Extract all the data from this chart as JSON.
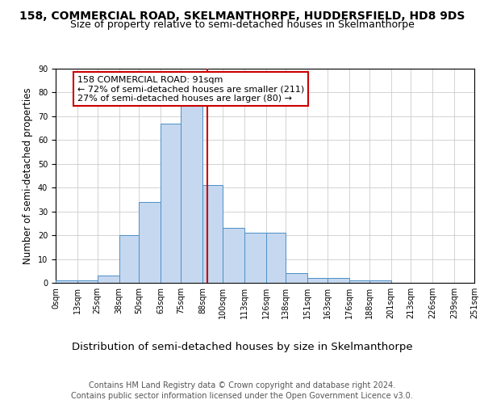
{
  "title": "158, COMMERCIAL ROAD, SKELMANTHORPE, HUDDERSFIELD, HD8 9DS",
  "subtitle": "Size of property relative to semi-detached houses in Skelmanthorpe",
  "xlabel": "Distribution of semi-detached houses by size in Skelmanthorpe",
  "ylabel": "Number of semi-detached properties",
  "bin_edges": [
    0,
    13,
    25,
    38,
    50,
    63,
    75,
    88,
    100,
    113,
    126,
    138,
    151,
    163,
    176,
    188,
    201,
    213,
    226,
    239,
    251
  ],
  "bar_heights": [
    1,
    1,
    3,
    20,
    34,
    67,
    75,
    41,
    23,
    21,
    21,
    4,
    2,
    2,
    1,
    1,
    0,
    0,
    0,
    0
  ],
  "bar_color": "#c5d8f0",
  "bar_edge_color": "#4d8fc5",
  "property_size": 91,
  "vline_color": "#cc0000",
  "annotation_text": "158 COMMERCIAL ROAD: 91sqm\n← 72% of semi-detached houses are smaller (211)\n27% of semi-detached houses are larger (80) →",
  "annotation_box_color": "#ffffff",
  "annotation_box_edge_color": "#cc0000",
  "ylim": [
    0,
    90
  ],
  "yticks": [
    0,
    10,
    20,
    30,
    40,
    50,
    60,
    70,
    80,
    90
  ],
  "background_color": "#ffffff",
  "grid_color": "#cccccc",
  "footer_line1": "Contains HM Land Registry data © Crown copyright and database right 2024.",
  "footer_line2": "Contains public sector information licensed under the Open Government Licence v3.0.",
  "title_fontsize": 10,
  "subtitle_fontsize": 9,
  "tick_label_fontsize": 7,
  "ylabel_fontsize": 8.5,
  "xlabel_fontsize": 9.5,
  "footer_fontsize": 7,
  "annotation_fontsize": 8
}
